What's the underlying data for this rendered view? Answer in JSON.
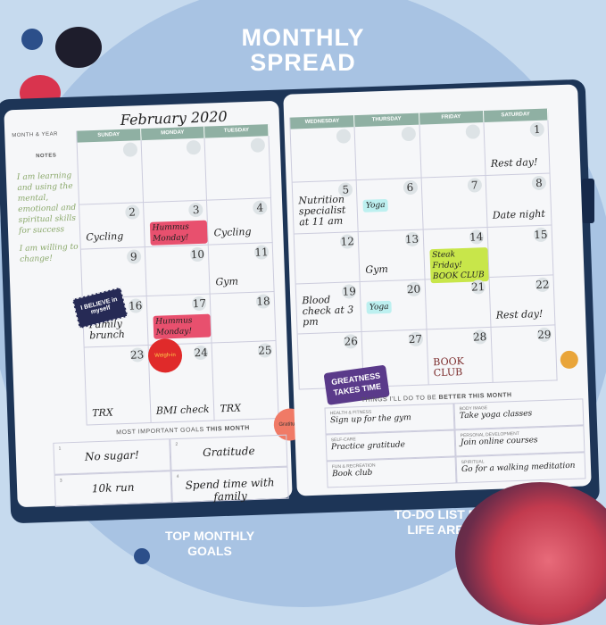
{
  "title": [
    "MONTHLY",
    "SPREAD"
  ],
  "left_page": {
    "month_year_label": "MONTH & YEAR",
    "month_year": "February 2020",
    "notes_label": "NOTES",
    "notes": [
      "I am learning and using the mental, emotional and spiritual skills for success",
      "I am willing to change!"
    ],
    "days": [
      "SUNDAY",
      "MONDAY",
      "TUESDAY"
    ],
    "cells": [
      {
        "num": "",
        "note": ""
      },
      {
        "num": "",
        "note": ""
      },
      {
        "num": "",
        "note": ""
      },
      {
        "num": "2",
        "note": "Cycling"
      },
      {
        "num": "3",
        "note": "Hummus Monday!"
      },
      {
        "num": "4",
        "note": "Cycling"
      },
      {
        "num": "9",
        "note": ""
      },
      {
        "num": "10",
        "note": ""
      },
      {
        "num": "11",
        "note": "Gym"
      },
      {
        "num": "16",
        "note": "Family brunch"
      },
      {
        "num": "17",
        "note": "Hummus Monday!"
      },
      {
        "num": "18",
        "note": ""
      },
      {
        "num": "23",
        "note": "TRX"
      },
      {
        "num": "24",
        "note": "BMI check"
      },
      {
        "num": "25",
        "note": "TRX"
      }
    ],
    "sticker_believe": "I BELIEVE in myself",
    "sticker_weigh": "Weigh-in",
    "sticker_gratitude": "Gratitude",
    "goals_label_pre": "MOST IMPORTANT GOALS ",
    "goals_label_bold": "THIS MONTH",
    "goals": [
      {
        "n": "1",
        "text": "No sugar!"
      },
      {
        "n": "2",
        "text": "Gratitude"
      },
      {
        "n": "3",
        "text": "10k run"
      },
      {
        "n": "4",
        "text": "Spend time with family"
      }
    ]
  },
  "right_page": {
    "days": [
      "WEDNESDAY",
      "THURSDAY",
      "FRIDAY",
      "SATURDAY"
    ],
    "cells": [
      {
        "num": "",
        "note": ""
      },
      {
        "num": "",
        "note": ""
      },
      {
        "num": "",
        "note": ""
      },
      {
        "num": "1",
        "note": "Rest day!"
      },
      {
        "num": "5",
        "note": "Nutrition specialist at 11 am"
      },
      {
        "num": "6",
        "note": "Yoga"
      },
      {
        "num": "7",
        "note": ""
      },
      {
        "num": "8",
        "note": "Date night"
      },
      {
        "num": "12",
        "note": ""
      },
      {
        "num": "13",
        "note": "Gym"
      },
      {
        "num": "14",
        "note": "Steak Friday! BOOK CLUB"
      },
      {
        "num": "15",
        "note": ""
      },
      {
        "num": "19",
        "note": "Blood check at 3 pm"
      },
      {
        "num": "20",
        "note": "Yoga"
      },
      {
        "num": "21",
        "note": ""
      },
      {
        "num": "22",
        "note": "Rest day!"
      },
      {
        "num": "26",
        "note": ""
      },
      {
        "num": "27",
        "note": ""
      },
      {
        "num": "28",
        "note": "BOOK CLUB"
      },
      {
        "num": "29",
        "note": ""
      }
    ],
    "sticker_greatness": "GREATNESS TAKES TIME",
    "better_label_pre": "THINGS I'LL DO TO BE ",
    "better_label_bold": "BETTER THIS MONTH",
    "areas": [
      {
        "label": "HEALTH & FITNESS",
        "text": "Sign up for the gym"
      },
      {
        "label": "BODY IMAGE",
        "text": "Take yoga classes"
      },
      {
        "label": "SELF-CARE",
        "text": "Practice gratitude"
      },
      {
        "label": "PERSONAL DEVELOPMENT",
        "text": "Join online courses"
      },
      {
        "label": "FUN & RECREATION",
        "text": "Book club"
      },
      {
        "label": "SPIRITUAL",
        "text": "Go for a walking meditation"
      }
    ]
  },
  "callouts": {
    "left": "TOP MONTHLY GOALS",
    "right": "TO-DO LIST BY LIFE AREA"
  },
  "colors": {
    "background": "#c6daee",
    "circle": "#a8c3e3",
    "cover": "#1d3557",
    "header": "#8fb0a3",
    "pink": "#e8506e",
    "lime": "#c8e64a",
    "aqua": "#bdf0f0"
  }
}
